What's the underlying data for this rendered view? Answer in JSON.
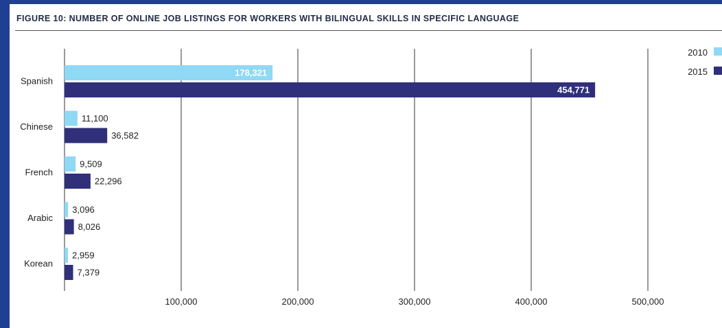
{
  "figure": {
    "title": "FIGURE 10: NUMBER OF ONLINE JOB LISTINGS FOR WORKERS WITH BILINGUAL SKILLS IN SPECIFIC LANGUAGE"
  },
  "colors": {
    "background_frame": "#1e3f93",
    "series_2010": "#8fd9f5",
    "series_2015": "#2f2f7a",
    "gridline": "#333333"
  },
  "chart_data": {
    "type": "bar",
    "orientation": "horizontal",
    "title": "FIGURE 10: NUMBER OF ONLINE JOB LISTINGS FOR WORKERS WITH BILINGUAL SKILLS IN SPECIFIC LANGUAGE",
    "categories": [
      "Spanish",
      "Chinese",
      "French",
      "Arabic",
      "Korean"
    ],
    "series": [
      {
        "name": "2010",
        "color": "#8fd9f5",
        "values": [
          178321,
          11100,
          9509,
          3096,
          2959
        ],
        "labels": [
          "178,321",
          "11,100",
          "9,509",
          "3,096",
          "2,959"
        ]
      },
      {
        "name": "2015",
        "color": "#2f2f7a",
        "values": [
          454771,
          36582,
          22296,
          8026,
          7379
        ],
        "labels": [
          "454,771",
          "36,582",
          "22,296",
          "8,026",
          "7,379"
        ]
      }
    ],
    "xlim": [
      0,
      500000
    ],
    "xticks": [
      100000,
      200000,
      300000,
      400000,
      500000
    ],
    "xtick_labels": [
      "100,000",
      "200,000",
      "300,000",
      "400,000",
      "500,000"
    ],
    "grid": true,
    "legend_position": "top-right"
  }
}
